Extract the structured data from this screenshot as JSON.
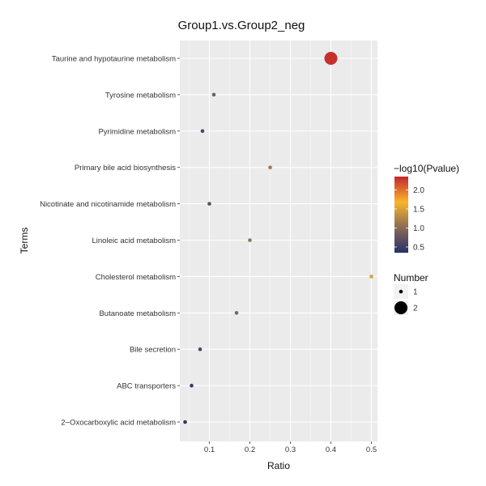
{
  "chart_data": {
    "type": "scatter",
    "title": "Group1.vs.Group2_neg",
    "xlabel": "Ratio",
    "ylabel": "Terms",
    "xlim": [
      0.027,
      0.515
    ],
    "x_ticks": [
      {
        "value": 0.1,
        "label": "0.1"
      },
      {
        "value": 0.2,
        "label": "0.2"
      },
      {
        "value": 0.3,
        "label": "0.3"
      },
      {
        "value": 0.4,
        "label": "0.4"
      },
      {
        "value": 0.5,
        "label": "0.5"
      }
    ],
    "grid": true,
    "panel_background": "#EBEBEB",
    "categories": [
      "Taurine and hypotaurine metabolism",
      "Tyrosine metabolism",
      "Pyrimidine metabolism",
      "Primary bile acid biosynthesis",
      "Nicotinate and nicotinamide metabolism",
      "Linoleic acid metabolism",
      "Cholesterol metabolism",
      "Butanoate metabolism",
      "Bile secretion",
      "ABC transporters",
      "2−Oxocarboxylic acid metabolism"
    ],
    "points": [
      {
        "term": "Taurine and hypotaurine metabolism",
        "ratio": 0.4,
        "neg_log10_p": 2.3,
        "number": 2
      },
      {
        "term": "Tyrosine metabolism",
        "ratio": 0.111,
        "neg_log10_p": 0.85,
        "number": 1
      },
      {
        "term": "Pyrimidine metabolism",
        "ratio": 0.083,
        "neg_log10_p": 0.6,
        "number": 1
      },
      {
        "term": "Primary bile acid biosynthesis",
        "ratio": 0.25,
        "neg_log10_p": 1.15,
        "number": 1
      },
      {
        "term": "Nicotinate and nicotinamide metabolism",
        "ratio": 0.1,
        "neg_log10_p": 0.7,
        "number": 1
      },
      {
        "term": "Linoleic acid metabolism",
        "ratio": 0.2,
        "neg_log10_p": 1.05,
        "number": 1
      },
      {
        "term": "Cholesterol metabolism",
        "ratio": 0.5,
        "neg_log10_p": 1.5,
        "number": 1
      },
      {
        "term": "Butanoate metabolism",
        "ratio": 0.167,
        "neg_log10_p": 0.95,
        "number": 1
      },
      {
        "term": "Bile secretion",
        "ratio": 0.077,
        "neg_log10_p": 0.6,
        "number": 1
      },
      {
        "term": "ABC transporters",
        "ratio": 0.056,
        "neg_log10_p": 0.45,
        "number": 1
      },
      {
        "term": "2−Oxocarboxylic acid metabolism",
        "ratio": 0.04,
        "neg_log10_p": 0.4,
        "number": 1
      }
    ],
    "color_legend": {
      "title": "−log10(Pvalue)",
      "range": [
        0.35,
        2.35
      ],
      "ticks": [
        {
          "value": 0.5,
          "label": "0.5"
        },
        {
          "value": 1.0,
          "label": "1.0"
        },
        {
          "value": 1.5,
          "label": "1.5"
        },
        {
          "value": 2.0,
          "label": "2.0"
        }
      ],
      "gradient_colors": [
        "#26306A",
        "#8A6B55",
        "#F9B52A",
        "#C2262E"
      ],
      "placement": "right"
    },
    "size_legend": {
      "title": "Number",
      "entries": [
        {
          "value": 1,
          "label": "1"
        },
        {
          "value": 2,
          "label": "2"
        }
      ],
      "placement": "right"
    }
  }
}
